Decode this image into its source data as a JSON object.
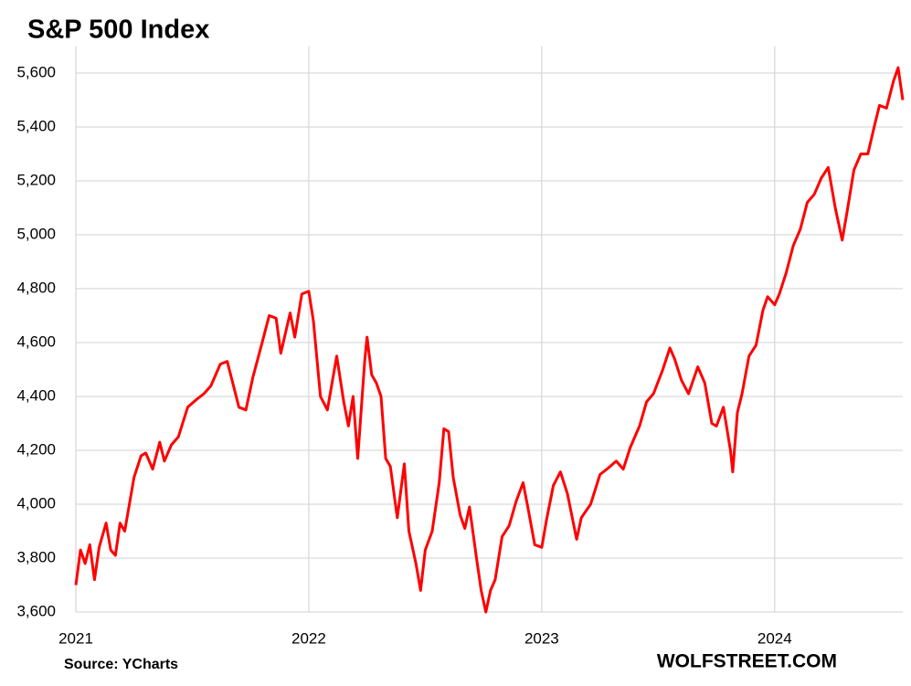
{
  "chart_data": {
    "type": "line",
    "title": "S&P 500  Index",
    "source": "Source: YCharts",
    "credit": "WOLFSTREET.COM",
    "color": "#ff0000",
    "grid": true,
    "xlim": [
      2021,
      2024.55
    ],
    "xticks": [
      2021,
      2022,
      2023,
      2024
    ],
    "ylim": [
      3600,
      5700
    ],
    "yticks": [
      {
        "value": 3600,
        "label": "3,600"
      },
      {
        "value": 3800,
        "label": "3,800"
      },
      {
        "value": 4000,
        "label": "4,000"
      },
      {
        "value": 4200,
        "label": "4,200"
      },
      {
        "value": 4400,
        "label": "4,400"
      },
      {
        "value": 4600,
        "label": "4,600"
      },
      {
        "value": 4800,
        "label": "4,800"
      },
      {
        "value": 5000,
        "label": "5,000"
      },
      {
        "value": 5200,
        "label": "5,200"
      },
      {
        "value": 5400,
        "label": "5,400"
      },
      {
        "value": 5600,
        "label": "5,600"
      }
    ],
    "x": [
      2021.0,
      2021.02,
      2021.04,
      2021.06,
      2021.08,
      2021.1,
      2021.13,
      2021.15,
      2021.17,
      2021.19,
      2021.21,
      2021.25,
      2021.28,
      2021.3,
      2021.33,
      2021.36,
      2021.38,
      2021.41,
      2021.44,
      2021.48,
      2021.52,
      2021.55,
      2021.58,
      2021.62,
      2021.65,
      2021.7,
      2021.73,
      2021.76,
      2021.8,
      2021.83,
      2021.86,
      2021.88,
      2021.92,
      2021.94,
      2021.97,
      2022.0,
      2022.02,
      2022.05,
      2022.08,
      2022.12,
      2022.15,
      2022.17,
      2022.19,
      2022.21,
      2022.24,
      2022.25,
      2022.27,
      2022.29,
      2022.31,
      2022.33,
      2022.35,
      2022.38,
      2022.41,
      2022.43,
      2022.46,
      2022.48,
      2022.5,
      2022.53,
      2022.56,
      2022.58,
      2022.6,
      2022.62,
      2022.65,
      2022.67,
      2022.69,
      2022.72,
      2022.74,
      2022.76,
      2022.78,
      2022.8,
      2022.83,
      2022.86,
      2022.89,
      2022.92,
      2022.94,
      2022.97,
      2023.0,
      2023.02,
      2023.05,
      2023.08,
      2023.11,
      2023.15,
      2023.17,
      2023.21,
      2023.25,
      2023.28,
      2023.32,
      2023.35,
      2023.38,
      2023.42,
      2023.45,
      2023.48,
      2023.52,
      2023.55,
      2023.57,
      2023.6,
      2023.63,
      2023.67,
      2023.7,
      2023.73,
      2023.75,
      2023.78,
      2023.81,
      2023.82,
      2023.84,
      2023.86,
      2023.89,
      2023.92,
      2023.95,
      2023.97,
      2024.0,
      2024.02,
      2024.05,
      2024.08,
      2024.11,
      2024.14,
      2024.17,
      2024.2,
      2024.23,
      2024.26,
      2024.29,
      2024.31,
      2024.34,
      2024.37,
      2024.4,
      2024.43,
      2024.45,
      2024.48,
      2024.51,
      2024.53,
      2024.55
    ],
    "values": [
      3700,
      3830,
      3780,
      3850,
      3720,
      3840,
      3930,
      3830,
      3810,
      3930,
      3900,
      4100,
      4180,
      4190,
      4130,
      4230,
      4160,
      4220,
      4250,
      4360,
      4390,
      4410,
      4440,
      4520,
      4530,
      4360,
      4350,
      4470,
      4600,
      4700,
      4690,
      4560,
      4710,
      4620,
      4780,
      4790,
      4680,
      4400,
      4350,
      4550,
      4380,
      4290,
      4400,
      4170,
      4530,
      4620,
      4480,
      4450,
      4400,
      4170,
      4140,
      3950,
      4150,
      3900,
      3780,
      3680,
      3830,
      3900,
      4080,
      4280,
      4270,
      4100,
      3960,
      3910,
      3990,
      3800,
      3680,
      3600,
      3680,
      3720,
      3880,
      3920,
      4010,
      4080,
      3990,
      3850,
      3840,
      3940,
      4070,
      4120,
      4040,
      3870,
      3950,
      4000,
      4110,
      4130,
      4160,
      4130,
      4210,
      4290,
      4380,
      4410,
      4500,
      4580,
      4540,
      4460,
      4410,
      4510,
      4450,
      4300,
      4290,
      4360,
      4200,
      4120,
      4340,
      4410,
      4550,
      4590,
      4720,
      4770,
      4740,
      4780,
      4860,
      4960,
      5020,
      5120,
      5150,
      5210,
      5250,
      5100,
      4980,
      5080,
      5240,
      5300,
      5300,
      5410,
      5480,
      5470,
      5570,
      5620,
      5500
    ]
  }
}
